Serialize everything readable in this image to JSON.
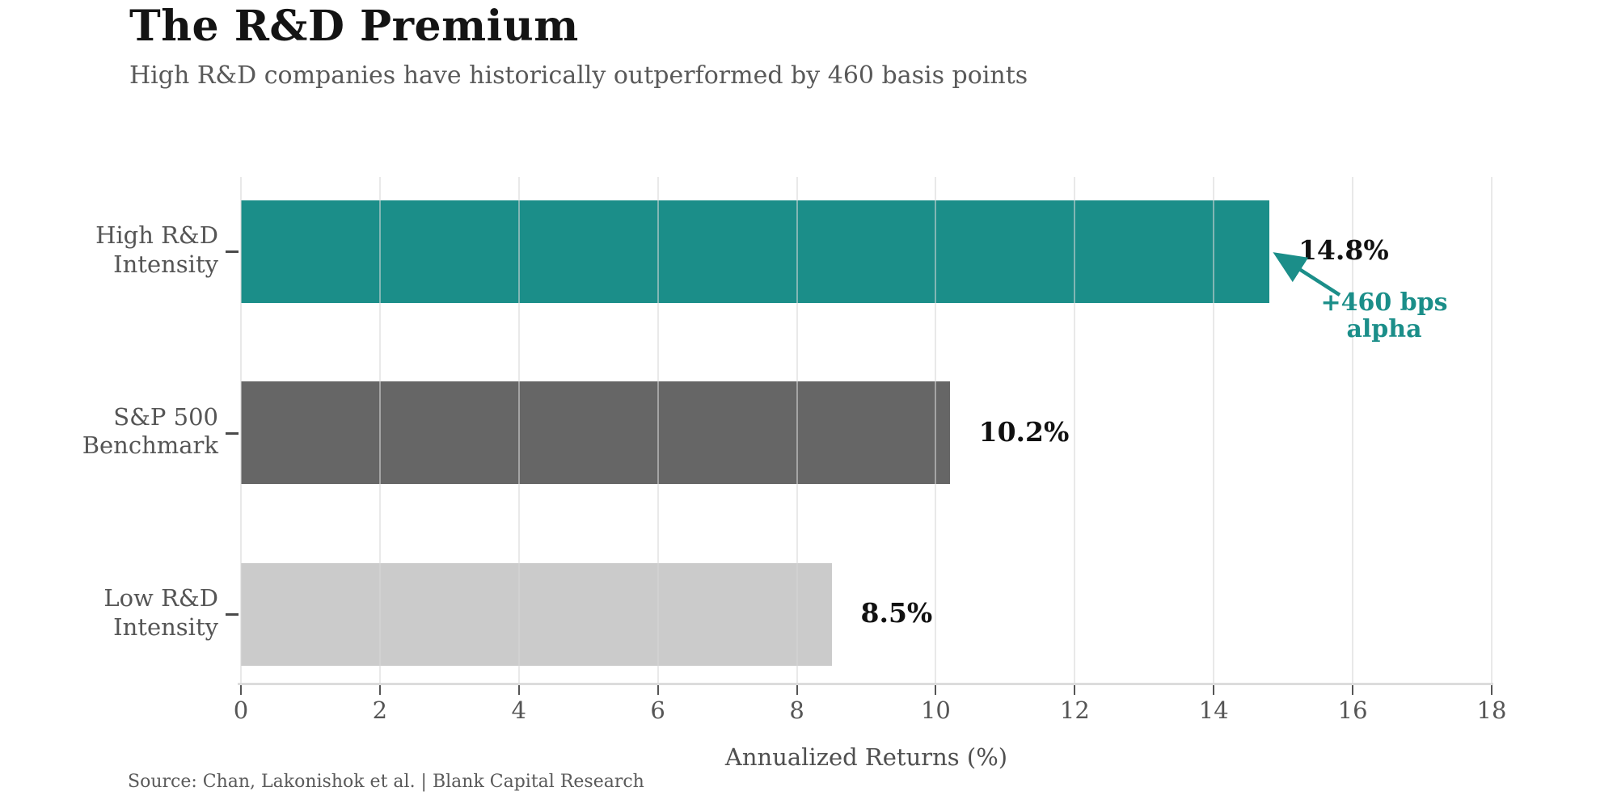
{
  "header": {
    "title": "The R&D Premium",
    "subtitle": "High R&D companies have historically outperformed by 460 basis points"
  },
  "chart_data": {
    "type": "bar",
    "orientation": "horizontal",
    "categories": [
      "High R&D Intensity",
      "S&P 500 Benchmark",
      "Low R&D Intensity"
    ],
    "category_lines": [
      [
        "High R&D",
        "Intensity"
      ],
      [
        "S&P 500",
        "Benchmark"
      ],
      [
        "Low R&D",
        "Intensity"
      ]
    ],
    "values": [
      14.8,
      10.2,
      8.5
    ],
    "value_labels": [
      "14.8%",
      "10.2%",
      "8.5%"
    ],
    "bar_colors": [
      "#1b8e89",
      "#666666",
      "#cbcbcb"
    ],
    "xlabel": "Annualized Returns (%)",
    "xlim": [
      0,
      18
    ],
    "xticks": [
      0,
      2,
      4,
      6,
      8,
      10,
      12,
      14,
      16,
      18
    ],
    "grid": true,
    "legend": "none",
    "annotation": {
      "lines": [
        "+460 bps",
        "alpha"
      ],
      "color": "#1b8e89",
      "points_to_value": 14.8
    }
  },
  "colors": {
    "accent": "#1b8e89",
    "title": "#141414",
    "muted_text": "#555555"
  },
  "footer": {
    "source": "Source: Chan, Lakonishok et al.  |  Blank Capital Research"
  }
}
